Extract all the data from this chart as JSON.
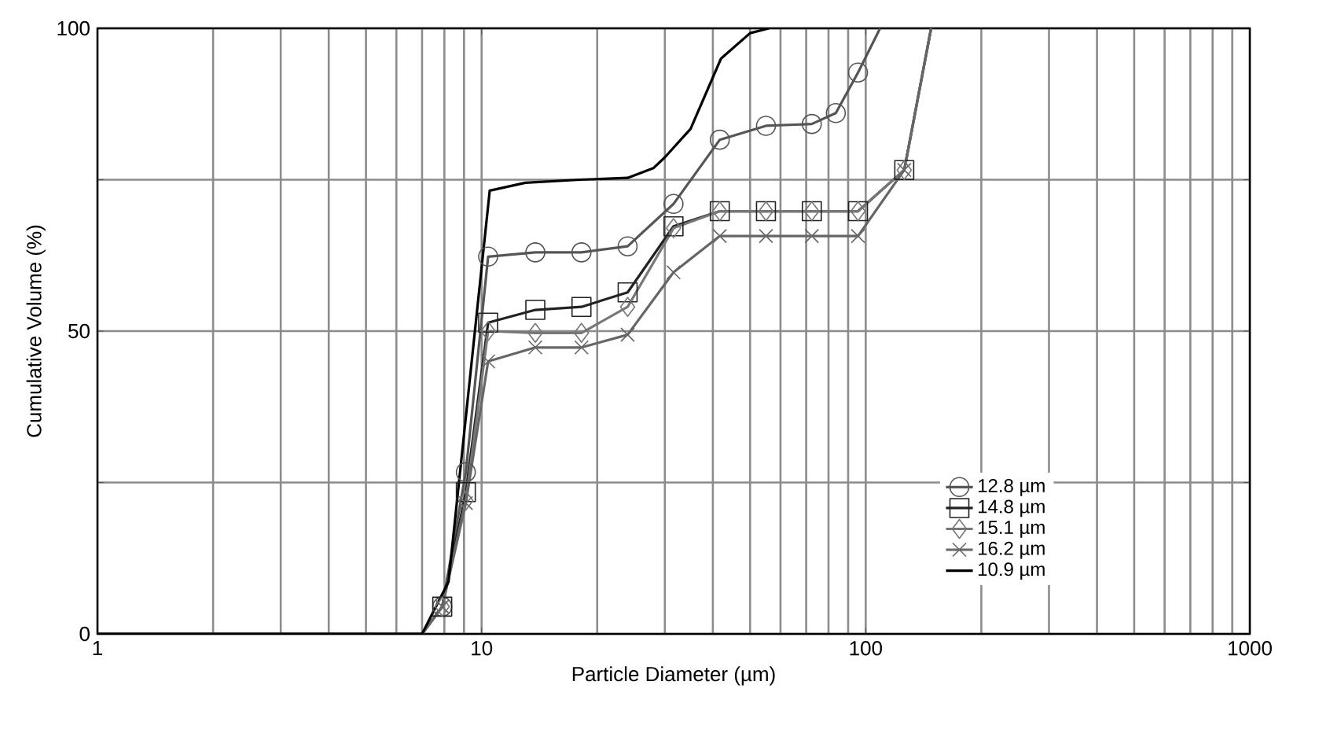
{
  "chart_data": {
    "type": "line",
    "xlabel": "Particle Diameter (µm)",
    "ylabel": "Cumulative Volume (%)",
    "log": "x",
    "grid": true,
    "legend": "bottom right",
    "line_style": "solid",
    "xlim": [
      1,
      1000
    ],
    "xticks": [
      1,
      10,
      100,
      1000
    ],
    "ylim": [
      0,
      100
    ],
    "yticks": [
      0,
      {
        "value": 25,
        "label": null
      },
      50,
      {
        "value": 75,
        "label": null
      },
      100
    ],
    "series": [
      {
        "name": "12.8 µm",
        "color": "#555555",
        "marker": "circle",
        "x": [
          1,
          7,
          7.9,
          9.1,
          10.4,
          13.8,
          18.2,
          24,
          31.6,
          41.7,
          55,
          72.4,
          83.6,
          95.5,
          109
        ],
        "values": [
          0,
          0,
          4.5,
          26.7,
          62.3,
          63,
          63,
          64,
          71,
          81.6,
          83.9,
          84.2,
          86,
          92.7,
          100
        ]
      },
      {
        "name": "14.8 µm",
        "color": "#222222",
        "marker": "square",
        "x": [
          1,
          7,
          7.9,
          9.1,
          10.4,
          13.8,
          18.2,
          24,
          31.6,
          41.7,
          55,
          72.4,
          95.5,
          126,
          148
        ],
        "values": [
          0,
          0,
          4.5,
          23.4,
          51.4,
          53.5,
          54,
          56.4,
          67.3,
          69.8,
          69.8,
          69.8,
          69.8,
          76.6,
          100
        ]
      },
      {
        "name": "15.1 µm",
        "color": "#777777",
        "marker": "diamond",
        "x": [
          1,
          7,
          7.9,
          9.1,
          10.4,
          13.8,
          18.2,
          24,
          31.6,
          41.7,
          55,
          72.4,
          95.5,
          126,
          148
        ],
        "values": [
          0,
          0,
          4.5,
          22,
          50,
          49.7,
          49.7,
          54,
          67,
          69.8,
          69.8,
          69.8,
          69.8,
          76.6,
          100
        ]
      },
      {
        "name": "16.2 µm",
        "color": "#666666",
        "marker": "cross",
        "x": [
          1,
          7,
          7.9,
          9.1,
          10.4,
          13.8,
          18.2,
          24,
          31.6,
          41.7,
          55,
          72.4,
          95.5,
          126,
          148
        ],
        "values": [
          0,
          0,
          4.5,
          21.6,
          45,
          47.3,
          47.3,
          49.4,
          59.7,
          65.7,
          65.7,
          65.7,
          65.7,
          76.6,
          100
        ]
      },
      {
        "name": "10.9 µm",
        "color": "#000000",
        "marker": "none",
        "x": [
          1,
          7,
          8.2,
          10.5,
          13,
          18,
          24,
          28,
          30,
          35,
          42,
          50,
          56
        ],
        "values": [
          0,
          0,
          8.6,
          73.2,
          74.5,
          75,
          75.3,
          76.9,
          78.7,
          83.4,
          95,
          99.2,
          100
        ]
      }
    ]
  }
}
